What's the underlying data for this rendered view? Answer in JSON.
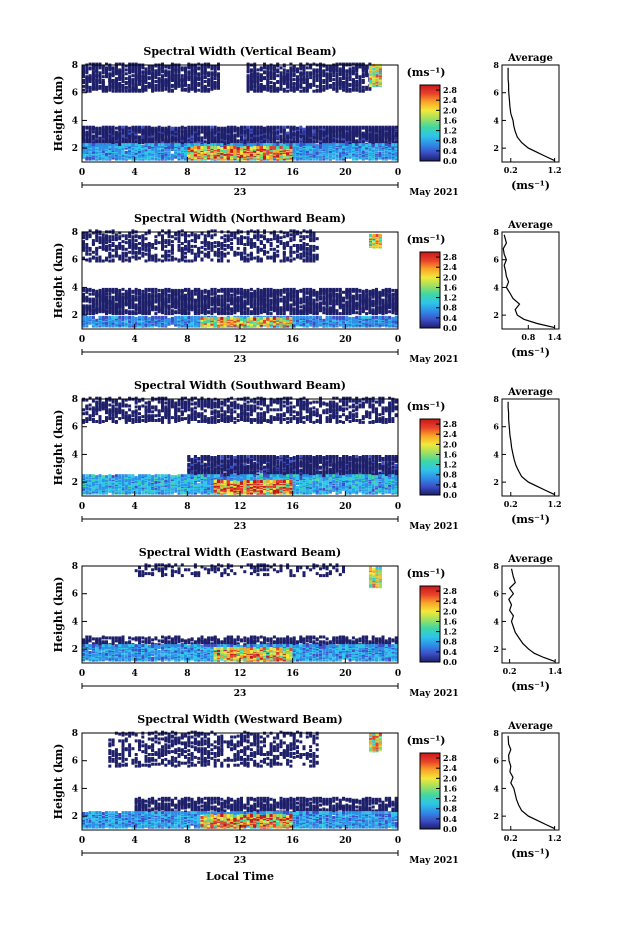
{
  "figure": {
    "xlabel_bottom": "Local Time",
    "colors": {
      "axis": "#000000",
      "colormap": [
        "#1d1f6a",
        "#3c4fc8",
        "#2e8fe8",
        "#2fc6e8",
        "#3fd7a5",
        "#9fe060",
        "#f3e83a",
        "#f8a428",
        "#e8402a",
        "#c81818"
      ],
      "echo_deep": "#1d2b8e",
      "echo_mid": "#4a5bd8"
    }
  },
  "chart_data": [
    {
      "type": "heatmap",
      "title": "Spectral Width (Vertical Beam)",
      "ylabel": "Height (km)",
      "yticks": [
        "2",
        "4",
        "6",
        "8"
      ],
      "ylim": [
        1,
        8
      ],
      "xticks": [
        "0",
        "4",
        "8",
        "12",
        "16",
        "20",
        "0"
      ],
      "xlim": [
        0,
        24
      ],
      "date_tick": "23",
      "date_label": "May 2021",
      "colorbar": {
        "unit": "(ms⁻¹)",
        "ticks": [
          "0.0",
          "0.4",
          "0.8",
          "1.2",
          "1.6",
          "2.0",
          "2.4",
          "2.8"
        ],
        "range": [
          0.0,
          3.0
        ]
      },
      "echo_regions": [
        {
          "level": 0.15,
          "t0": 0,
          "t1": 10.5,
          "h0": 6.0,
          "h1": 8.0,
          "density": 0.55
        },
        {
          "level": 0.15,
          "t0": 12.5,
          "t1": 22,
          "h0": 6.0,
          "h1": 8.0,
          "density": 0.5
        },
        {
          "level": 0.2,
          "t0": 0,
          "t1": 24,
          "h0": 2.0,
          "h1": 3.4,
          "density": 0.75
        },
        {
          "level": 0.8,
          "t0": 0,
          "t1": 24,
          "h0": 1.1,
          "h1": 2.2,
          "density": 0.85
        },
        {
          "level": 2.2,
          "t0": 8,
          "t1": 16,
          "h0": 1.1,
          "h1": 2.0,
          "density": 0.8
        },
        {
          "level": 1.9,
          "t0": 21.8,
          "t1": 22.6,
          "h0": 6.4,
          "h1": 7.9,
          "density": 0.9
        }
      ],
      "profile": {
        "title": "Average",
        "xticks": [
          "0.2",
          "1.2"
        ],
        "xlim": [
          0.0,
          1.3
        ],
        "ylim": [
          1,
          8
        ],
        "yticks": [
          "2",
          "4",
          "6",
          "8"
        ],
        "xunit": "(ms⁻¹)",
        "x": [
          1.2,
          1.0,
          0.8,
          0.6,
          0.45,
          0.35,
          0.3,
          0.27,
          0.25,
          0.2,
          0.18,
          0.17,
          0.16,
          0.15,
          0.15,
          0.14,
          0.14,
          0.14
        ],
        "y": [
          1.1,
          1.4,
          1.7,
          2.0,
          2.4,
          2.8,
          3.2,
          3.6,
          4.0,
          4.5,
          5.0,
          5.4,
          5.8,
          6.2,
          6.6,
          7.0,
          7.4,
          7.8
        ]
      }
    },
    {
      "type": "heatmap",
      "title": "Spectral Width (Northward Beam)",
      "ylabel": "Height (km)",
      "yticks": [
        "2",
        "4",
        "6",
        "8"
      ],
      "ylim": [
        1,
        8
      ],
      "xticks": [
        "0",
        "4",
        "8",
        "12",
        "16",
        "20",
        "0"
      ],
      "xlim": [
        0,
        24
      ],
      "date_tick": "23",
      "date_label": "May 2021",
      "colorbar": {
        "unit": "(ms⁻¹)",
        "ticks": [
          "0.0",
          "0.4",
          "0.8",
          "1.2",
          "1.6",
          "2.0",
          "2.4",
          "2.8"
        ],
        "range": [
          0.0,
          3.0
        ]
      },
      "echo_regions": [
        {
          "level": 0.15,
          "t0": 0,
          "t1": 18,
          "h0": 5.8,
          "h1": 8.0,
          "density": 0.3
        },
        {
          "level": 0.15,
          "t0": 0,
          "t1": 24,
          "h0": 2.0,
          "h1": 3.8,
          "density": 0.6
        },
        {
          "level": 0.7,
          "t0": 0,
          "t1": 24,
          "h0": 1.1,
          "h1": 1.8,
          "density": 0.85
        },
        {
          "level": 2.0,
          "t0": 9,
          "t1": 16,
          "h0": 1.1,
          "h1": 1.7,
          "density": 0.8
        },
        {
          "level": 1.9,
          "t0": 21.8,
          "t1": 22.6,
          "h0": 6.8,
          "h1": 7.7,
          "density": 0.9
        }
      ],
      "profile": {
        "title": "Average",
        "xticks": [
          "0.8",
          "1.4"
        ],
        "xlim": [
          0.2,
          1.5
        ],
        "ylim": [
          1,
          8
        ],
        "yticks": [
          "2",
          "4",
          "6",
          "8"
        ],
        "xunit": "(ms⁻¹)",
        "x": [
          1.4,
          1.0,
          0.7,
          0.55,
          0.5,
          0.6,
          0.45,
          0.38,
          0.3,
          0.35,
          0.3,
          0.28,
          0.25,
          0.3,
          0.25,
          0.23,
          0.3,
          0.25
        ],
        "y": [
          1.1,
          1.4,
          1.7,
          2.0,
          2.4,
          2.8,
          3.2,
          3.6,
          4.0,
          4.4,
          4.8,
          5.2,
          5.6,
          6.0,
          6.4,
          6.8,
          7.2,
          7.8
        ]
      }
    },
    {
      "type": "heatmap",
      "title": "Spectral Width (Southward Beam)",
      "ylabel": "Height (km)",
      "yticks": [
        "2",
        "4",
        "6",
        "8"
      ],
      "ylim": [
        1,
        8
      ],
      "xticks": [
        "0",
        "4",
        "8",
        "12",
        "16",
        "20",
        "0"
      ],
      "xlim": [
        0,
        24
      ],
      "date_tick": "23",
      "date_label": "May 2021",
      "colorbar": {
        "unit": "(ms⁻¹)",
        "ticks": [
          "0.0",
          "0.4",
          "0.8",
          "1.2",
          "1.6",
          "2.0",
          "2.4",
          "2.8"
        ],
        "range": [
          0.0,
          3.0
        ]
      },
      "echo_regions": [
        {
          "level": 0.15,
          "t0": 0,
          "t1": 24,
          "h0": 6.2,
          "h1": 8.0,
          "density": 0.35
        },
        {
          "level": 0.2,
          "t0": 8,
          "t1": 24,
          "h0": 2.2,
          "h1": 3.8,
          "density": 0.7
        },
        {
          "level": 0.9,
          "t0": 0,
          "t1": 24,
          "h0": 1.1,
          "h1": 2.4,
          "density": 0.8
        },
        {
          "level": 2.3,
          "t0": 10,
          "t1": 16,
          "h0": 1.1,
          "h1": 2.0,
          "density": 0.8
        }
      ],
      "profile": {
        "title": "Average",
        "xticks": [
          "0.2",
          "1.2"
        ],
        "xlim": [
          0.0,
          1.3
        ],
        "ylim": [
          1,
          8
        ],
        "yticks": [
          "2",
          "4",
          "6",
          "8"
        ],
        "xunit": "(ms⁻¹)",
        "x": [
          1.2,
          1.0,
          0.8,
          0.6,
          0.45,
          0.38,
          0.32,
          0.28,
          0.25,
          0.22,
          0.2,
          0.18,
          0.17,
          0.16,
          0.15,
          0.15,
          0.14,
          0.14
        ],
        "y": [
          1.1,
          1.4,
          1.7,
          2.0,
          2.4,
          2.8,
          3.2,
          3.6,
          4.0,
          4.5,
          5.0,
          5.4,
          5.8,
          6.2,
          6.6,
          7.0,
          7.4,
          7.8
        ]
      }
    },
    {
      "type": "heatmap",
      "title": "Spectral Width (Eastward Beam)",
      "ylabel": "Height (km)",
      "yticks": [
        "2",
        "4",
        "6",
        "8"
      ],
      "ylim": [
        1,
        8
      ],
      "xticks": [
        "0",
        "4",
        "8",
        "12",
        "16",
        "20",
        "0"
      ],
      "xlim": [
        0,
        24
      ],
      "date_tick": "23",
      "date_label": "May 2021",
      "colorbar": {
        "unit": "(ms⁻¹)",
        "ticks": [
          "0.0",
          "0.4",
          "0.8",
          "1.2",
          "1.6",
          "2.0",
          "2.4",
          "2.8"
        ],
        "range": [
          0.0,
          3.0
        ]
      },
      "echo_regions": [
        {
          "level": 0.15,
          "t0": 4,
          "t1": 20,
          "h0": 7.2,
          "h1": 8.0,
          "density": 0.2
        },
        {
          "level": 0.15,
          "t0": 0,
          "t1": 24,
          "h0": 2.0,
          "h1": 2.8,
          "density": 0.4
        },
        {
          "level": 0.8,
          "t0": 0,
          "t1": 24,
          "h0": 1.1,
          "h1": 2.2,
          "density": 0.85
        },
        {
          "level": 2.1,
          "t0": 10,
          "t1": 16,
          "h0": 1.1,
          "h1": 2.0,
          "density": 0.8
        },
        {
          "level": 1.9,
          "t0": 21.8,
          "t1": 22.6,
          "h0": 6.4,
          "h1": 7.8,
          "density": 0.9
        }
      ],
      "profile": {
        "title": "Average",
        "xticks": [
          "0.2",
          "1.4"
        ],
        "xlim": [
          0.0,
          1.5
        ],
        "ylim": [
          1,
          8
        ],
        "yticks": [
          "2",
          "4",
          "6",
          "8"
        ],
        "xunit": "(ms⁻¹)",
        "x": [
          1.4,
          1.1,
          0.85,
          0.7,
          0.55,
          0.45,
          0.35,
          0.3,
          0.25,
          0.3,
          0.2,
          0.25,
          0.18,
          0.3,
          0.2,
          0.35,
          0.3,
          0.25
        ],
        "y": [
          1.1,
          1.4,
          1.7,
          2.0,
          2.4,
          2.8,
          3.2,
          3.6,
          4.0,
          4.4,
          4.8,
          5.2,
          5.6,
          6.0,
          6.4,
          6.8,
          7.2,
          7.8
        ]
      }
    },
    {
      "type": "heatmap",
      "title": "Spectral Width (Westward Beam)",
      "ylabel": "Height (km)",
      "yticks": [
        "2",
        "4",
        "6",
        "8"
      ],
      "ylim": [
        1,
        8
      ],
      "xticks": [
        "0",
        "4",
        "8",
        "12",
        "16",
        "20",
        "0"
      ],
      "xlim": [
        0,
        24
      ],
      "date_tick": "23",
      "date_label": "May 2021",
      "colorbar": {
        "unit": "(ms⁻¹)",
        "ticks": [
          "0.0",
          "0.4",
          "0.8",
          "1.2",
          "1.6",
          "2.0",
          "2.4",
          "2.8"
        ],
        "range": [
          0.0,
          3.0
        ]
      },
      "echo_regions": [
        {
          "level": 0.15,
          "t0": 2,
          "t1": 18,
          "h0": 5.5,
          "h1": 8.0,
          "density": 0.25
        },
        {
          "level": 0.15,
          "t0": 4,
          "t1": 24,
          "h0": 2.2,
          "h1": 3.2,
          "density": 0.5
        },
        {
          "level": 0.8,
          "t0": 0,
          "t1": 24,
          "h0": 1.1,
          "h1": 2.2,
          "density": 0.85
        },
        {
          "level": 2.2,
          "t0": 9,
          "t1": 16,
          "h0": 1.1,
          "h1": 2.0,
          "density": 0.8
        },
        {
          "level": 1.9,
          "t0": 21.8,
          "t1": 22.6,
          "h0": 6.6,
          "h1": 7.8,
          "density": 0.9
        }
      ],
      "profile": {
        "title": "Average",
        "xticks": [
          "0.2",
          "1.2"
        ],
        "xlim": [
          0.0,
          1.3
        ],
        "ylim": [
          1,
          8
        ],
        "yticks": [
          "2",
          "4",
          "6",
          "8"
        ],
        "xunit": "(ms⁻¹)",
        "x": [
          1.2,
          1.0,
          0.8,
          0.6,
          0.45,
          0.38,
          0.33,
          0.3,
          0.27,
          0.2,
          0.25,
          0.18,
          0.2,
          0.16,
          0.15,
          0.2,
          0.15,
          0.14
        ],
        "y": [
          1.1,
          1.4,
          1.7,
          2.0,
          2.4,
          2.8,
          3.2,
          3.6,
          4.0,
          4.4,
          4.8,
          5.2,
          5.6,
          6.0,
          6.4,
          6.8,
          7.2,
          7.8
        ]
      }
    }
  ]
}
